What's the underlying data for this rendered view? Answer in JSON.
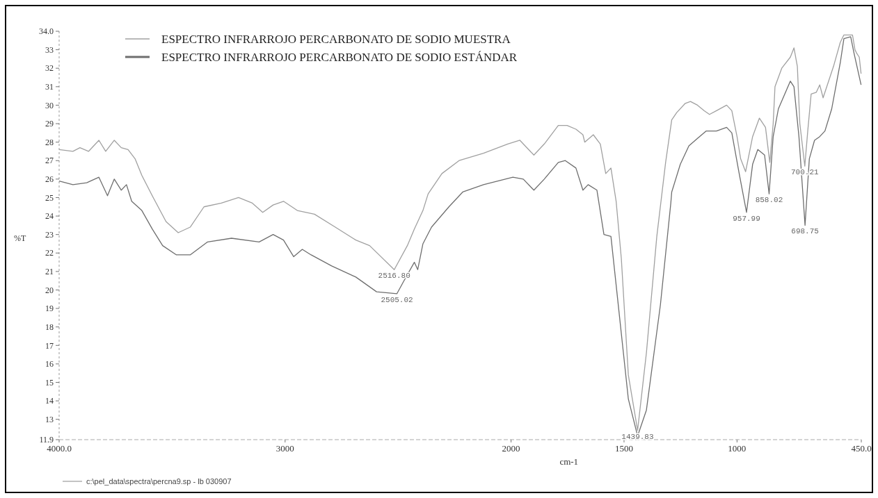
{
  "chart_data": {
    "type": "line",
    "ylabel": "%T",
    "xlabel": "cm-1",
    "legend": "top",
    "line_style": "solid",
    "marker": "none",
    "grid": false,
    "xlim": [
      4000,
      450
    ],
    "xticks": [
      {
        "value": 4000,
        "label": "4000.0"
      },
      3000,
      2000,
      1500,
      1000,
      {
        "value": 450,
        "label": "450.0"
      }
    ],
    "ylim": [
      11.9,
      34
    ],
    "yticks": [
      {
        "value": 11.9,
        "label": "11.9"
      },
      13,
      14,
      15,
      16,
      17,
      18,
      19,
      20,
      21,
      22,
      23,
      24,
      25,
      26,
      27,
      28,
      29,
      30,
      31,
      32,
      33,
      {
        "value": 34,
        "label": "34.0"
      }
    ],
    "series": [
      {
        "name": "ESPECTRO INFRARROJO PERCARBONATO DE SODIO MUESTRA",
        "color": "#a0a0a0",
        "x": [
          4000,
          3939,
          3908,
          3870,
          3824,
          3794,
          3756,
          3725,
          3695,
          3664,
          3634,
          3588,
          3527,
          3473,
          3420,
          3359,
          3282,
          3206,
          3145,
          3099,
          3053,
          3007,
          2946,
          2870,
          2778,
          2687,
          2626,
          2517,
          2459,
          2428,
          2390,
          2367,
          2306,
          2230,
          2122,
          2015,
          1961,
          1899,
          1853,
          1791,
          1752,
          1713,
          1682,
          1674,
          1636,
          1605,
          1581,
          1558,
          1535,
          1512,
          1481,
          1440,
          1401,
          1355,
          1316,
          1289,
          1267,
          1229,
          1206,
          1175,
          1145,
          1122,
          1091,
          1046,
          1023,
          1000,
          984,
          962,
          931,
          901,
          874,
          855,
          840,
          832,
          802,
          764,
          748,
          733,
          722,
          700,
          687,
          672,
          649,
          634,
          619,
          573,
          543,
          527,
          489,
          478,
          470,
          459,
          451
        ],
        "values": [
          27.6,
          27.5,
          27.7,
          27.5,
          28.1,
          27.5,
          28.1,
          27.7,
          27.6,
          27.1,
          26.2,
          25.1,
          23.7,
          23.1,
          23.4,
          24.5,
          24.7,
          25.0,
          24.7,
          24.2,
          24.6,
          24.8,
          24.3,
          24.1,
          23.4,
          22.7,
          22.4,
          21.1,
          22.4,
          23.3,
          24.3,
          25.2,
          26.3,
          27.0,
          27.4,
          27.9,
          28.1,
          27.3,
          27.9,
          28.9,
          28.9,
          28.7,
          28.4,
          28.0,
          28.4,
          27.9,
          26.3,
          26.6,
          24.8,
          21.7,
          15.4,
          12.4,
          16.6,
          22.9,
          26.9,
          29.2,
          29.6,
          30.1,
          30.2,
          30.0,
          29.7,
          29.5,
          29.7,
          30.0,
          29.7,
          28.3,
          27.1,
          26.4,
          28.3,
          29.3,
          28.8,
          26.9,
          29.0,
          31.0,
          32.0,
          32.6,
          33.1,
          32.1,
          29.0,
          26.7,
          28.6,
          30.6,
          30.7,
          31.1,
          30.4,
          32.1,
          33.4,
          33.8,
          33.8,
          33.0,
          32.8,
          32.6,
          31.7
        ]
      },
      {
        "name": "ESPECTRO INFRARROJO PERCARBONATO DE SODIO ESTÁNDAR",
        "color": "#6e6e6e",
        "x": [
          4000,
          3939,
          3878,
          3824,
          3786,
          3756,
          3725,
          3702,
          3679,
          3634,
          3588,
          3542,
          3481,
          3420,
          3343,
          3237,
          3115,
          3053,
          3007,
          2962,
          2924,
          2885,
          2794,
          2687,
          2595,
          2505,
          2474,
          2428,
          2413,
          2390,
          2352,
          2275,
          2214,
          2122,
          1992,
          1946,
          1899,
          1853,
          1791,
          1760,
          1713,
          1682,
          1659,
          1620,
          1589,
          1558,
          1481,
          1440,
          1401,
          1339,
          1293,
          1289,
          1251,
          1213,
          1175,
          1137,
          1091,
          1046,
          1023,
          992,
          958,
          931,
          908,
          878,
          858,
          840,
          817,
          764,
          748,
          726,
          699,
          680,
          657,
          634,
          611,
          581,
          543,
          527,
          497,
          482,
          451
        ],
        "values": [
          25.9,
          25.7,
          25.8,
          26.1,
          25.1,
          26.0,
          25.4,
          25.7,
          24.8,
          24.3,
          23.3,
          22.4,
          21.9,
          21.9,
          22.6,
          22.8,
          22.6,
          23.0,
          22.7,
          21.8,
          22.2,
          21.9,
          21.3,
          20.7,
          19.9,
          19.8,
          20.5,
          21.5,
          21.1,
          22.5,
          23.4,
          24.5,
          25.3,
          25.7,
          26.1,
          26.0,
          25.4,
          26.0,
          26.9,
          27.0,
          26.6,
          25.4,
          25.7,
          25.4,
          23.0,
          22.9,
          14.1,
          12.1,
          13.5,
          19.2,
          24.7,
          25.3,
          26.8,
          27.8,
          28.2,
          28.6,
          28.6,
          28.8,
          28.5,
          26.4,
          24.2,
          26.8,
          27.6,
          27.3,
          25.2,
          28.3,
          29.8,
          31.3,
          31.0,
          28.3,
          23.5,
          27.1,
          28.1,
          28.3,
          28.6,
          29.8,
          32.3,
          33.6,
          33.7,
          32.8,
          31.1
        ]
      }
    ],
    "annotations": [
      {
        "text": "2516.80",
        "x": 2517,
        "y": 21.1
      },
      {
        "text": "2505.02",
        "x": 2505,
        "y": 19.8
      },
      {
        "text": "1439.83",
        "x": 1440,
        "y": 12.4
      },
      {
        "text": "957.99",
        "x": 958,
        "y": 24.2
      },
      {
        "text": "858.02",
        "x": 858,
        "y": 25.2
      },
      {
        "text": "700.21",
        "x": 700,
        "y": 26.7
      },
      {
        "text": "698.75",
        "x": 699,
        "y": 23.5
      },
      "c:\\pel_data\\spectra\\percna9.sp - lb 030907"
    ]
  }
}
